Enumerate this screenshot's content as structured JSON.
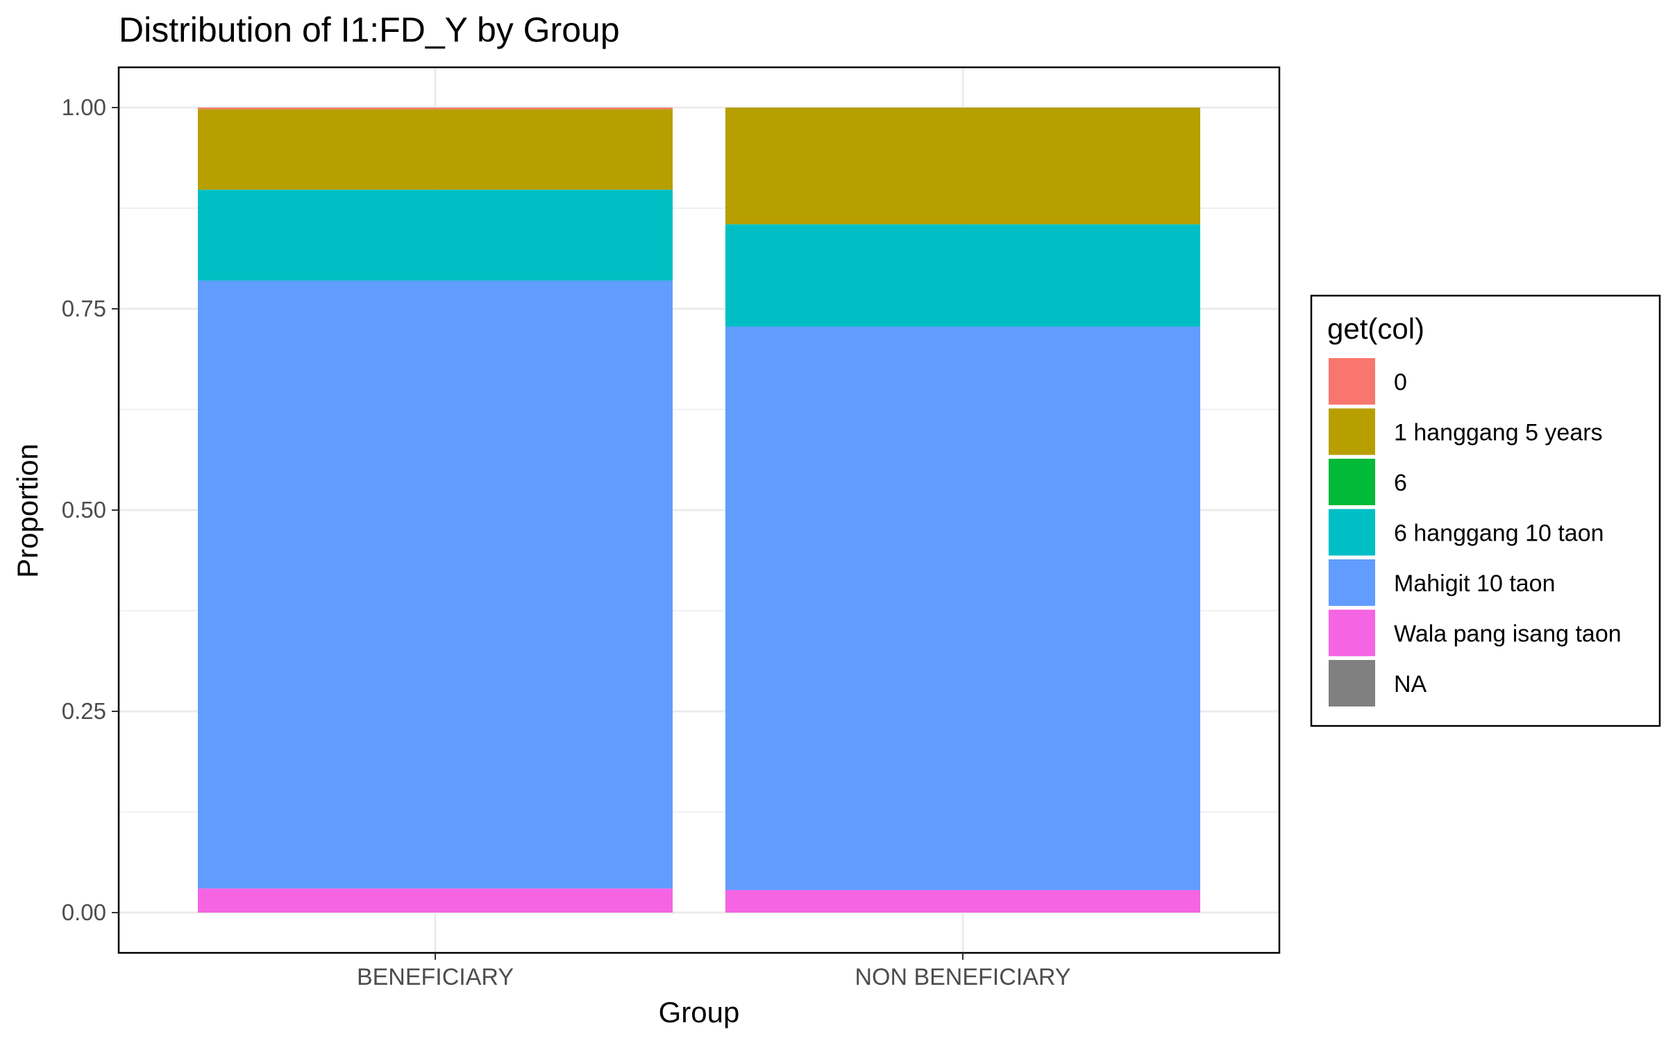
{
  "chart_data": {
    "type": "bar",
    "stacked": true,
    "title": "Distribution of I1:FD_Y by Group",
    "xlabel": "Group",
    "ylabel": "Proportion",
    "ylim": [
      -0.05,
      1.05
    ],
    "yticks": [
      "0.00",
      "0.25",
      "0.50",
      "0.75",
      "1.00"
    ],
    "grid": true,
    "legend_position": "right",
    "legend_title": "get(col)",
    "categories": [
      "BENEFICIARY",
      "NON BENEFICIARY"
    ],
    "series": [
      {
        "name": "0",
        "color": "#F8766D",
        "values": [
          0.002,
          0.0
        ]
      },
      {
        "name": "1 hanggang 5 years",
        "color": "#B79F00",
        "values": [
          0.1,
          0.145
        ]
      },
      {
        "name": "6",
        "color": "#00BA38",
        "values": [
          0.0,
          0.0
        ]
      },
      {
        "name": "6 hanggang 10 taon",
        "color": "#00BFC4",
        "values": [
          0.113,
          0.127
        ]
      },
      {
        "name": "Mahigit 10 taon",
        "color": "#619CFF",
        "values": [
          0.755,
          0.7
        ]
      },
      {
        "name": "Wala pang isang taon",
        "color": "#F564E3",
        "values": [
          0.03,
          0.028
        ]
      },
      {
        "name": "NA",
        "color": "#808080",
        "values": [
          0.0,
          0.0
        ]
      }
    ]
  }
}
